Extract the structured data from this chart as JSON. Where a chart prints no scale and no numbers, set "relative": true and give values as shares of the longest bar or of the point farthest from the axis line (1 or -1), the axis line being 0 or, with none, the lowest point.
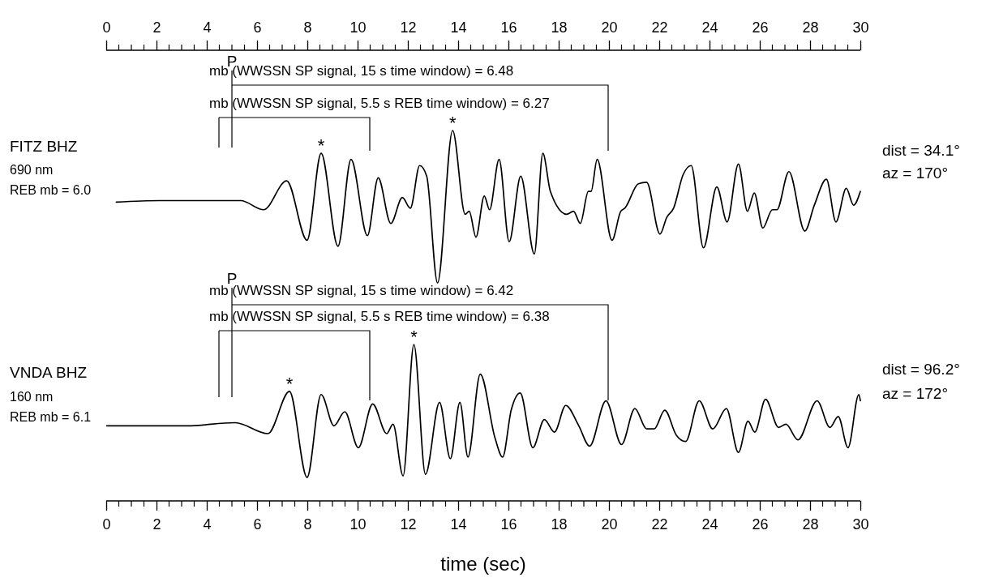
{
  "chart_data": [
    {
      "type": "line",
      "relative": true,
      "xlim": [
        0,
        30
      ],
      "xticks": [
        0,
        2,
        4,
        6,
        8,
        10,
        12,
        14,
        16,
        18,
        20,
        22,
        24,
        26,
        28,
        30
      ],
      "series": [
        {
          "color": "#000000",
          "x": [
            0.4,
            2.12,
            5.35,
            6.26,
            7.18,
            7.99,
            8.55,
            9.22,
            9.74,
            10.39,
            10.82,
            11.32,
            11.78,
            12.1,
            12.47,
            12.75,
            13.18,
            13.78,
            14.28,
            14.44,
            14.71,
            15.04,
            15.25,
            15.63,
            16.03,
            16.49,
            17.03,
            17.37,
            17.67,
            18.32,
            18.59,
            18.86,
            19.18,
            19.29,
            19.53,
            20.12,
            20.47,
            20.63,
            21.17,
            21.5,
            22.03,
            22.3,
            22.57,
            22.95,
            23.27,
            23.76,
            24.29,
            24.7,
            25.15,
            25.51,
            25.78,
            26.12,
            26.5,
            26.68,
            27.16,
            27.79,
            28.17,
            28.65,
            29.03,
            29.44,
            29.73,
            30
          ],
          "values": [
            0.53,
            0.54,
            0.54,
            0.48,
            0.67,
            0.28,
            0.85,
            0.24,
            0.81,
            0.31,
            0.69,
            0.39,
            0.56,
            0.49,
            0.77,
            0.7,
            0,
            1,
            0.45,
            0.47,
            0.3,
            0.57,
            0.48,
            0.81,
            0.27,
            0.7,
            0.19,
            0.85,
            0.6,
            0.45,
            0.47,
            0.39,
            0.6,
            0.6,
            0.81,
            0.28,
            0.47,
            0.49,
            0.65,
            0.66,
            0.32,
            0.43,
            0.49,
            0.71,
            0.77,
            0.23,
            0.63,
            0.4,
            0.78,
            0.47,
            0.59,
            0.36,
            0.48,
            0.48,
            0.73,
            0.34,
            0.51,
            0.68,
            0.4,
            0.62,
            0.51,
            0.6
          ]
        }
      ],
      "annotations": [
        "FITZ BHZ",
        "690 nm",
        "REB mb = 6.0",
        "dist = 34.1°",
        "az = 170°",
        "P",
        "mb (WWSSN SP signal, 15 s time window) = 6.48",
        "mb (WWSSN SP signal, 5.5 s REB time window) = 6.27",
        {
          "text": "*",
          "x": 8.55,
          "y": 0.85
        },
        {
          "text": "*",
          "x": 13.78,
          "y": 1
        }
      ]
    },
    {
      "type": "line",
      "relative": true,
      "xlim": [
        0,
        30
      ],
      "xlabel": "time (sec)",
      "xticks": [
        0,
        2,
        4,
        6,
        8,
        10,
        12,
        14,
        16,
        18,
        20,
        22,
        24,
        26,
        28,
        30
      ],
      "series": [
        {
          "color": "#000000",
          "x": [
            0.02,
            3.2,
            5.13,
            6.43,
            7.29,
            7.99,
            8.55,
            9.06,
            9.49,
            10.03,
            10.6,
            11.16,
            11.41,
            11.81,
            12.24,
            12.7,
            13.26,
            13.69,
            14.07,
            14.39,
            14.88,
            15.47,
            15.77,
            16.11,
            16.47,
            16.97,
            17.43,
            17.83,
            18.28,
            18.8,
            19.23,
            19.88,
            20.5,
            21.03,
            21.5,
            21.8,
            22.22,
            22.68,
            23.05,
            23.59,
            24.13,
            24.67,
            25.15,
            25.53,
            25.8,
            26.23,
            26.75,
            27.04,
            27.52,
            28.28,
            28.79,
            29.12,
            29.51,
            29.94,
            30
          ],
          "values": [
            0.48,
            0.48,
            0.5,
            0.43,
            0.7,
            0.15,
            0.68,
            0.48,
            0.57,
            0.34,
            0.62,
            0.43,
            0.49,
            0.16,
            1,
            0.17,
            0.63,
            0.27,
            0.63,
            0.28,
            0.81,
            0.4,
            0.28,
            0.58,
            0.69,
            0.34,
            0.52,
            0.44,
            0.61,
            0.48,
            0.35,
            0.64,
            0.36,
            0.59,
            0.46,
            0.46,
            0.58,
            0.42,
            0.38,
            0.64,
            0.46,
            0.59,
            0.31,
            0.51,
            0.44,
            0.65,
            0.47,
            0.49,
            0.39,
            0.64,
            0.47,
            0.54,
            0.34,
            0.68,
            0.64
          ]
        }
      ],
      "annotations": [
        "VNDA BHZ",
        "160 nm",
        "REB mb = 6.1",
        "dist = 96.2°",
        "az = 172°",
        "P",
        "mb (WWSSN SP signal, 15 s time window) = 6.42",
        "mb (WWSSN SP signal, 5.5 s REB time window) = 6.38",
        {
          "text": "*",
          "x": 7.29,
          "y": 0.7
        },
        {
          "text": "*",
          "x": 12.24,
          "y": 1
        }
      ]
    }
  ]
}
